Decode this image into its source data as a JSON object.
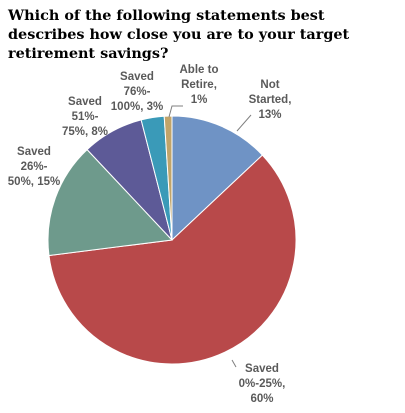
{
  "chart_data": {
    "type": "pie",
    "title": "Which of the following statements best describes how close you are to your target retirement savings?",
    "slices": [
      {
        "label": "Not Started, 13%",
        "lines": [
          "Not",
          "Started,",
          "13%"
        ],
        "value": 13,
        "color": "#6f93c5"
      },
      {
        "label": "Saved 0%-25%, 60%",
        "lines": [
          "Saved",
          "0%-25%,",
          "60%"
        ],
        "value": 60,
        "color": "#b8494a"
      },
      {
        "label": "Saved 26%-50%, 15%",
        "lines": [
          "Saved",
          "26%-",
          "50%, 15%"
        ],
        "value": 15,
        "color": "#6e9a8c"
      },
      {
        "label": "Saved 51%-75%, 8%",
        "lines": [
          "Saved",
          "51%-",
          "75%, 8%"
        ],
        "value": 8,
        "color": "#5d5a97"
      },
      {
        "label": "Saved 76%-100%, 3%",
        "lines": [
          "Saved",
          "76%-",
          "100%, 3%"
        ],
        "value": 3,
        "color": "#3a9ab8"
      },
      {
        "label": "Able to Retire, 1%",
        "lines": [
          "Able to",
          "Retire,",
          "1%"
        ],
        "value": 1,
        "color": "#c1a46a"
      }
    ]
  }
}
